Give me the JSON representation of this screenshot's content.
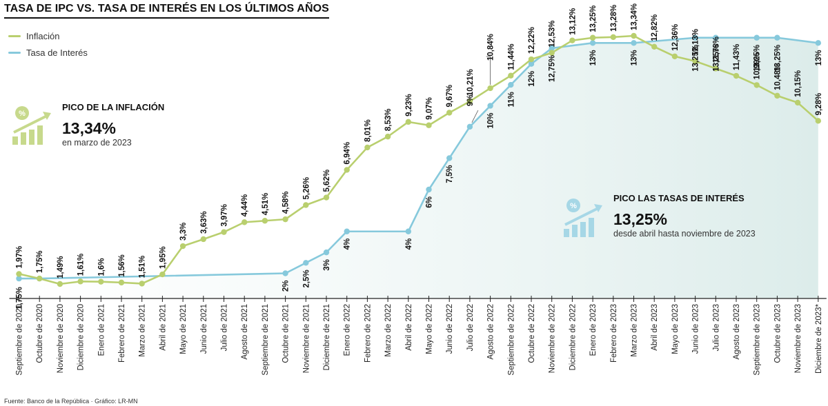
{
  "title": "TASA DE IPC VS. TASA DE INTERÉS EN LOS ÚLTIMOS AÑOS",
  "source": "Fuente: Banco de la República · Gráfico: LR-MN",
  "callouts": {
    "inflation_peak": {
      "title": "PICO DE LA INFLACIÓN",
      "value": "13,34%",
      "subtitle": "en marzo de 2023",
      "icon": "growth-chart-icon"
    },
    "rate_peak": {
      "title": "PICO LAS TASAS DE INTERÉS",
      "value": "13,25%",
      "subtitle": "desde abril hasta noviembre de 2023",
      "icon": "growth-chart-icon"
    }
  },
  "colors": {
    "inflation": "#b9cf6e",
    "rate": "#86c9dc",
    "icon": "#c7d98c",
    "icon_rate": "#a6d7e6",
    "axis": "#222222"
  },
  "chart_data": {
    "type": "line",
    "categories": [
      "Septiembre de 2020",
      "Octubre de 2020",
      "Noviembre de 2020",
      "Diciembre de 2020",
      "Enero de 2021",
      "Febrero de 2021",
      "Marzo de 2021",
      "Abril de 2021",
      "Mayo de 2021",
      "Junio de 2021",
      "Julio de 2021",
      "Agosto de 2021",
      "Septiembre de 2021",
      "Octubre de 2021",
      "Noviembre de 2021",
      "Diciembre de 2021",
      "Enero de 2022",
      "Febrero de 2022",
      "Marzo de 2022",
      "Abril de 2022",
      "Mayo de 2022",
      "Junio de 2022",
      "Julio de 2022",
      "Agosto de 2022",
      "Septiembre de 2022",
      "Octubre de 2022",
      "Noviembre de 2022",
      "Diciembre de 2022",
      "Enero de 2023",
      "Febrero de 2023",
      "Marzo de 2023",
      "Abril de 2023",
      "Mayo de 2023",
      "Junio de 2023",
      "Julio de 2023",
      "Agosto de 2023",
      "Septiembre de 2023",
      "Octubre de 2023",
      "Noviembre de 2023",
      "Diciembre de 2023*"
    ],
    "series": [
      {
        "name": "Inflación",
        "values": [
          1.97,
          1.75,
          1.49,
          1.61,
          1.6,
          1.56,
          1.51,
          1.95,
          3.3,
          3.63,
          3.97,
          4.44,
          4.51,
          4.58,
          5.26,
          5.62,
          6.94,
          8.01,
          8.53,
          9.23,
          9.07,
          9.67,
          10.21,
          10.84,
          11.44,
          12.22,
          12.53,
          13.12,
          13.25,
          13.28,
          13.34,
          12.82,
          12.36,
          12.13,
          11.78,
          11.43,
          10.99,
          10.48,
          10.15,
          9.28
        ],
        "labels": [
          "1,97%",
          "1,75%",
          "1,49%",
          "1,61%",
          "1,6%",
          "1,56%",
          "1,51%",
          "1,95%",
          "3,3%",
          "3,63%",
          "3,97%",
          "4,44%",
          "4,51%",
          "4,58%",
          "5,26%",
          "5,62%",
          "6,94%",
          "8,01%",
          "8,53%",
          "9,23%",
          "9,07%",
          "9,67%",
          "10,21%",
          "10,84%",
          "11,44%",
          "12,22%",
          "12,53%",
          "13,12%",
          "13,25%",
          "13,28%",
          "13,34%",
          "12,82%",
          "12,36%",
          "12,13%",
          "11,78%",
          "11,43%",
          "10,99%",
          "10,48%",
          "10,15%",
          "9,28%"
        ]
      },
      {
        "name": "Tasa de Interés",
        "values": [
          1.75,
          1.75,
          null,
          null,
          null,
          null,
          null,
          null,
          null,
          null,
          null,
          null,
          null,
          2,
          2.5,
          3,
          4,
          null,
          null,
          4,
          6,
          7.5,
          9,
          10,
          11,
          12,
          12.75,
          null,
          13,
          null,
          13,
          null,
          null,
          13.25,
          13.25,
          null,
          13.25,
          13.25,
          null,
          13
        ],
        "labels": [
          "1,75%",
          null,
          null,
          null,
          null,
          null,
          null,
          null,
          null,
          null,
          null,
          null,
          null,
          "2%",
          "2,5%",
          "3%",
          "4%",
          null,
          null,
          "4%",
          "6%",
          "7,5%",
          "9%",
          "10%",
          "11%",
          "12%",
          "12,75%",
          null,
          "13%",
          null,
          "13%",
          null,
          null,
          "13,25%",
          "13,25%",
          null,
          "13,25%",
          "13,25%",
          null,
          "13%"
        ]
      }
    ],
    "ylim": [
      0,
      14
    ]
  }
}
